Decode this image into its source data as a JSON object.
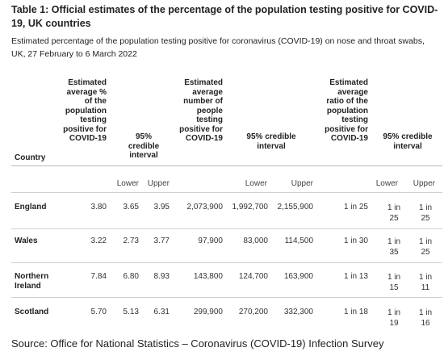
{
  "title": "Table 1: Official estimates of the percentage of the population testing positive for COVID-19, UK countries",
  "subtitle": "Estimated percentage of the population testing positive for coronavirus (COVID-19) on nose and throat swabs, UK, 27 February to 6 March 2022",
  "headers": {
    "country": "Country",
    "pct": "Estimated average % of the population testing positive for COVID-19",
    "pct_ci": "95% credible interval",
    "num": "Estimated average number of people testing positive for COVID-19",
    "num_ci": "95% credible interval",
    "ratio": "Estimated average ratio of the population testing positive for COVID-19",
    "ratio_ci": "95% credible interval"
  },
  "subheaders": {
    "lower": "Lower",
    "upper": "Upper"
  },
  "rows": [
    {
      "country": "England",
      "pct": "3.80",
      "pct_lower": "3.65",
      "pct_upper": "3.95",
      "num": "2,073,900",
      "num_lower": "1,992,700",
      "num_upper": "2,155,900",
      "ratio": "1 in 25",
      "ratio_lower": "1 in 25",
      "ratio_upper": "1 in 25"
    },
    {
      "country": "Wales",
      "pct": "3.22",
      "pct_lower": "2.73",
      "pct_upper": "3.77",
      "num": "97,900",
      "num_lower": "83,000",
      "num_upper": "114,500",
      "ratio": "1 in 30",
      "ratio_lower": "1 in 35",
      "ratio_upper": "1 in 25"
    },
    {
      "country": "Northern Ireland",
      "pct": "7.84",
      "pct_lower": "6.80",
      "pct_upper": "8.93",
      "num": "143,800",
      "num_lower": "124,700",
      "num_upper": "163,900",
      "ratio": "1 in 13",
      "ratio_lower": "1 in 15",
      "ratio_upper": "1 in 11"
    },
    {
      "country": "Scotland",
      "pct": "5.70",
      "pct_lower": "5.13",
      "pct_upper": "6.31",
      "num": "299,900",
      "num_lower": "270,200",
      "num_upper": "332,300",
      "ratio": "1 in 18",
      "ratio_lower": "1 in 19",
      "ratio_upper": "1 in 16"
    }
  ],
  "source": "Source: Office for National Statistics – Coronavirus (COVID-19) Infection Survey"
}
